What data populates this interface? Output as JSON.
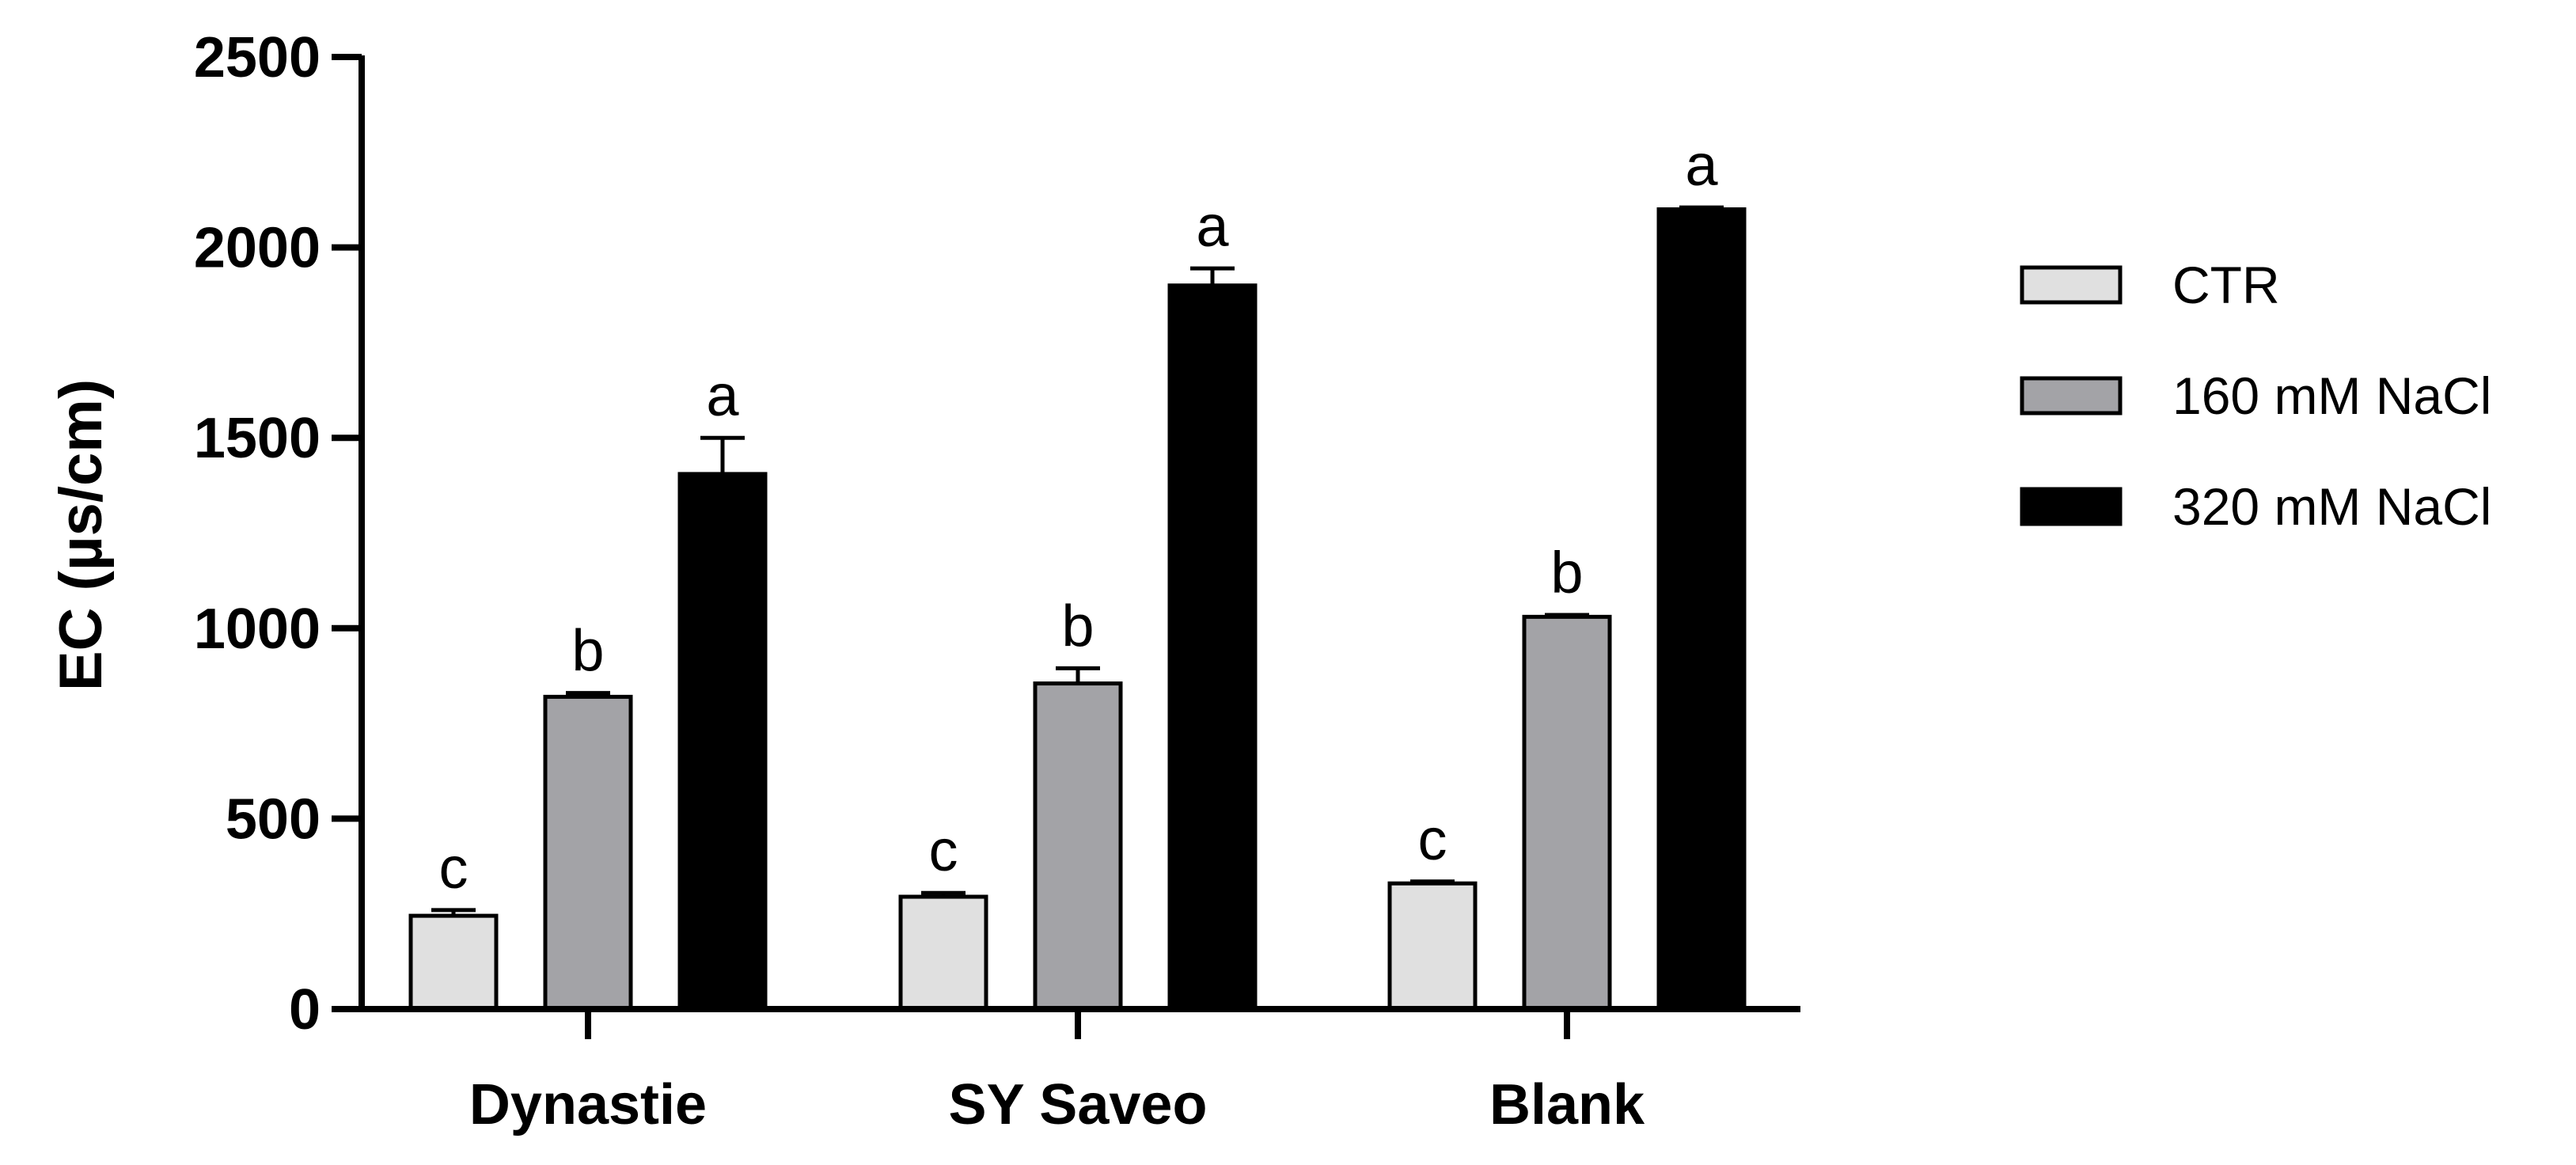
{
  "chart_data": {
    "type": "bar",
    "ylabel": "EC (µs/cm)",
    "xlabel": "",
    "ylim": [
      0,
      2500
    ],
    "yticks": [
      "0",
      "500",
      "1000",
      "1500",
      "2000",
      "2500"
    ],
    "categories": [
      "Dynastie",
      "SY Saveo",
      "Blank"
    ],
    "grid": false,
    "legend_position": "right",
    "series": [
      {
        "name": "CTR",
        "color": "#e0e0e0",
        "values": [
          245,
          295,
          330
        ],
        "errors": [
          15,
          10,
          5
        ],
        "labels": [
          "c",
          "c",
          "c"
        ]
      },
      {
        "name": "160 mM NaCl",
        "color": "#a3a3a7",
        "values": [
          820,
          855,
          1030
        ],
        "errors": [
          10,
          40,
          5
        ],
        "labels": [
          "b",
          "b",
          "b"
        ]
      },
      {
        "name": "320 mM NaCl",
        "color": "#000000",
        "values": [
          1405,
          1900,
          2100
        ],
        "errors": [
          95,
          45,
          5
        ],
        "labels": [
          "a",
          "a",
          "a"
        ]
      }
    ]
  }
}
